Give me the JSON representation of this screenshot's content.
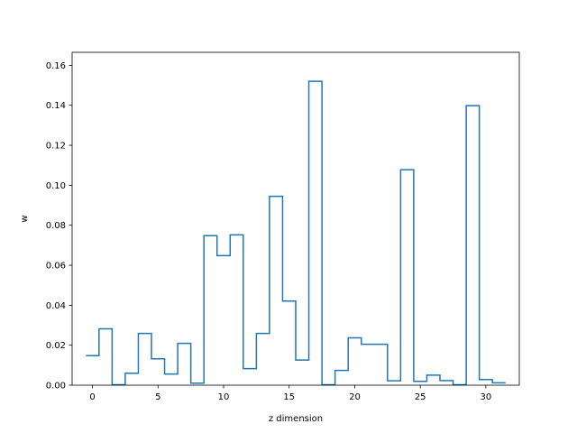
{
  "chart_data": {
    "type": "line",
    "style": "step",
    "title": "",
    "xlabel": "z dimension",
    "ylabel": "w",
    "xlim": [
      -1.55,
      32.55
    ],
    "ylim": [
      0.0,
      0.1665
    ],
    "xticks": [
      0,
      5,
      10,
      15,
      20,
      25,
      30
    ],
    "xtick_labels": [
      "0",
      "5",
      "10",
      "15",
      "20",
      "25",
      "30"
    ],
    "yticks": [
      0.0,
      0.02,
      0.04,
      0.06,
      0.08,
      0.1,
      0.12,
      0.14,
      0.16
    ],
    "ytick_labels": [
      "0.00",
      "0.02",
      "0.04",
      "0.06",
      "0.08",
      "0.10",
      "0.12",
      "0.14",
      "0.16"
    ],
    "grid": false,
    "color": "#1f77b4",
    "x": [
      0,
      1,
      2,
      3,
      4,
      5,
      6,
      7,
      8,
      9,
      10,
      11,
      12,
      13,
      14,
      15,
      16,
      17,
      18,
      19,
      20,
      21,
      22,
      23,
      24,
      25,
      26,
      27,
      28,
      29,
      30,
      31
    ],
    "values": [
      0.0148,
      0.0282,
      0.0002,
      0.006,
      0.0259,
      0.0132,
      0.0056,
      0.0209,
      0.001,
      0.0748,
      0.0648,
      0.0752,
      0.0083,
      0.0259,
      0.0945,
      0.0421,
      0.0126,
      0.152,
      0.0002,
      0.0074,
      0.0237,
      0.0205,
      0.0205,
      0.0022,
      0.1078,
      0.0019,
      0.005,
      0.0023,
      0.0002,
      0.1398,
      0.0028,
      0.0012
    ]
  }
}
